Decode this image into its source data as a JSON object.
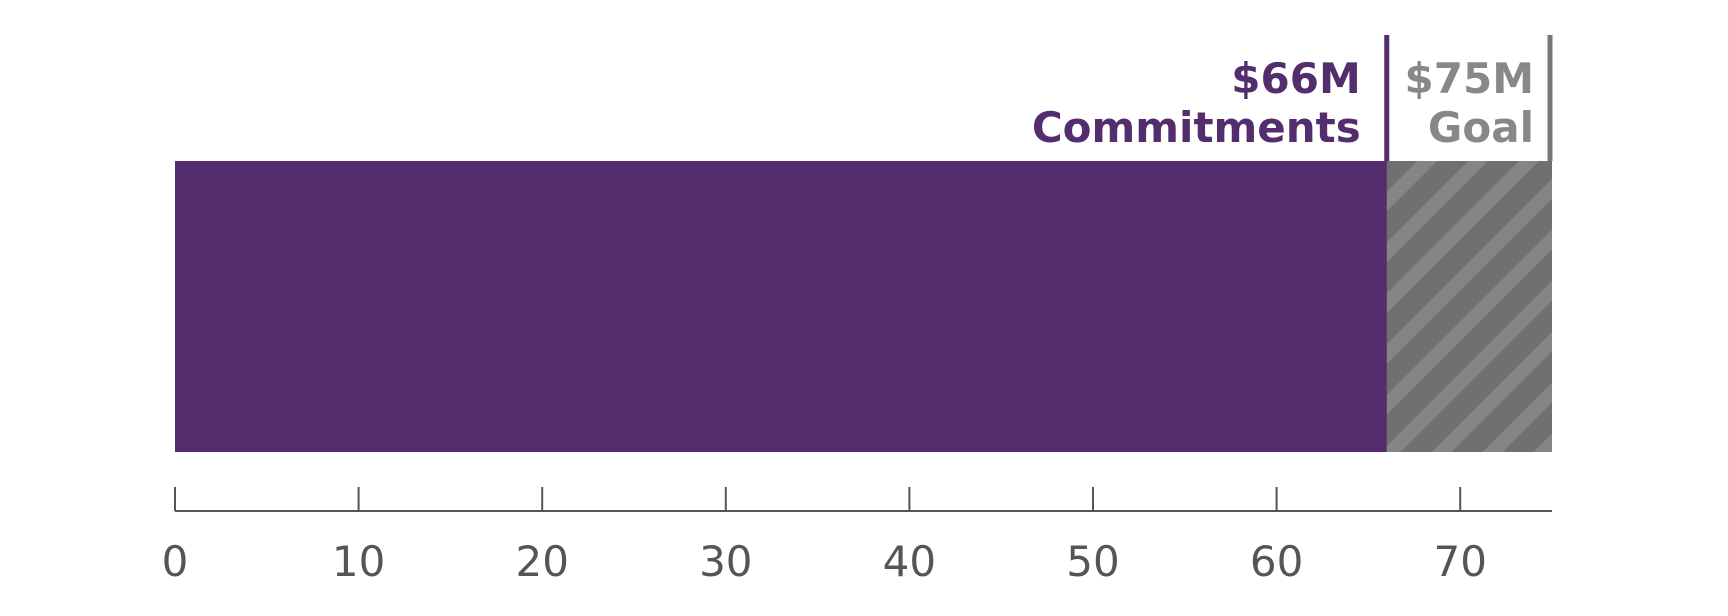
{
  "chart_data": {
    "type": "progress",
    "series": [
      {
        "name": "Commitments",
        "color": "#532d6d",
        "values": [
          66
        ],
        "value_labels": [
          "$66M"
        ]
      },
      {
        "name": "Goal",
        "color": "#777777",
        "values": [
          75
        ],
        "value_labels": [
          "$75M"
        ]
      }
    ],
    "xlim": [
      0,
      75
    ],
    "xticks": [
      0,
      10,
      20,
      30,
      40,
      50,
      60,
      70
    ]
  }
}
